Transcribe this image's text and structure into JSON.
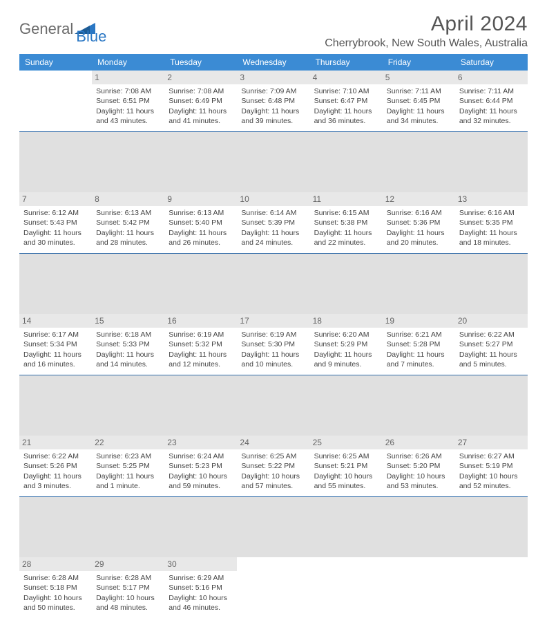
{
  "logo": {
    "part1": "General",
    "part2": "Blue"
  },
  "title": "April 2024",
  "location": "Cherrybrook, New South Wales, Australia",
  "day_headers": [
    "Sunday",
    "Monday",
    "Tuesday",
    "Wednesday",
    "Thursday",
    "Friday",
    "Saturday"
  ],
  "colors": {
    "header_bg": "#3b8bd4",
    "sep_line": "#2f6aa8",
    "daynum_bg": "#e8e8e8",
    "text": "#444444",
    "title_text": "#555555",
    "logo_gray": "#6b6b6b",
    "logo_blue": "#2a77c4"
  },
  "weeks": [
    [
      {
        "n": "",
        "sr": "",
        "ss": "",
        "dl": ""
      },
      {
        "n": "1",
        "sr": "Sunrise: 7:08 AM",
        "ss": "Sunset: 6:51 PM",
        "dl": "Daylight: 11 hours and 43 minutes."
      },
      {
        "n": "2",
        "sr": "Sunrise: 7:08 AM",
        "ss": "Sunset: 6:49 PM",
        "dl": "Daylight: 11 hours and 41 minutes."
      },
      {
        "n": "3",
        "sr": "Sunrise: 7:09 AM",
        "ss": "Sunset: 6:48 PM",
        "dl": "Daylight: 11 hours and 39 minutes."
      },
      {
        "n": "4",
        "sr": "Sunrise: 7:10 AM",
        "ss": "Sunset: 6:47 PM",
        "dl": "Daylight: 11 hours and 36 minutes."
      },
      {
        "n": "5",
        "sr": "Sunrise: 7:11 AM",
        "ss": "Sunset: 6:45 PM",
        "dl": "Daylight: 11 hours and 34 minutes."
      },
      {
        "n": "6",
        "sr": "Sunrise: 7:11 AM",
        "ss": "Sunset: 6:44 PM",
        "dl": "Daylight: 11 hours and 32 minutes."
      }
    ],
    [
      {
        "n": "7",
        "sr": "Sunrise: 6:12 AM",
        "ss": "Sunset: 5:43 PM",
        "dl": "Daylight: 11 hours and 30 minutes."
      },
      {
        "n": "8",
        "sr": "Sunrise: 6:13 AM",
        "ss": "Sunset: 5:42 PM",
        "dl": "Daylight: 11 hours and 28 minutes."
      },
      {
        "n": "9",
        "sr": "Sunrise: 6:13 AM",
        "ss": "Sunset: 5:40 PM",
        "dl": "Daylight: 11 hours and 26 minutes."
      },
      {
        "n": "10",
        "sr": "Sunrise: 6:14 AM",
        "ss": "Sunset: 5:39 PM",
        "dl": "Daylight: 11 hours and 24 minutes."
      },
      {
        "n": "11",
        "sr": "Sunrise: 6:15 AM",
        "ss": "Sunset: 5:38 PM",
        "dl": "Daylight: 11 hours and 22 minutes."
      },
      {
        "n": "12",
        "sr": "Sunrise: 6:16 AM",
        "ss": "Sunset: 5:36 PM",
        "dl": "Daylight: 11 hours and 20 minutes."
      },
      {
        "n": "13",
        "sr": "Sunrise: 6:16 AM",
        "ss": "Sunset: 5:35 PM",
        "dl": "Daylight: 11 hours and 18 minutes."
      }
    ],
    [
      {
        "n": "14",
        "sr": "Sunrise: 6:17 AM",
        "ss": "Sunset: 5:34 PM",
        "dl": "Daylight: 11 hours and 16 minutes."
      },
      {
        "n": "15",
        "sr": "Sunrise: 6:18 AM",
        "ss": "Sunset: 5:33 PM",
        "dl": "Daylight: 11 hours and 14 minutes."
      },
      {
        "n": "16",
        "sr": "Sunrise: 6:19 AM",
        "ss": "Sunset: 5:32 PM",
        "dl": "Daylight: 11 hours and 12 minutes."
      },
      {
        "n": "17",
        "sr": "Sunrise: 6:19 AM",
        "ss": "Sunset: 5:30 PM",
        "dl": "Daylight: 11 hours and 10 minutes."
      },
      {
        "n": "18",
        "sr": "Sunrise: 6:20 AM",
        "ss": "Sunset: 5:29 PM",
        "dl": "Daylight: 11 hours and 9 minutes."
      },
      {
        "n": "19",
        "sr": "Sunrise: 6:21 AM",
        "ss": "Sunset: 5:28 PM",
        "dl": "Daylight: 11 hours and 7 minutes."
      },
      {
        "n": "20",
        "sr": "Sunrise: 6:22 AM",
        "ss": "Sunset: 5:27 PM",
        "dl": "Daylight: 11 hours and 5 minutes."
      }
    ],
    [
      {
        "n": "21",
        "sr": "Sunrise: 6:22 AM",
        "ss": "Sunset: 5:26 PM",
        "dl": "Daylight: 11 hours and 3 minutes."
      },
      {
        "n": "22",
        "sr": "Sunrise: 6:23 AM",
        "ss": "Sunset: 5:25 PM",
        "dl": "Daylight: 11 hours and 1 minute."
      },
      {
        "n": "23",
        "sr": "Sunrise: 6:24 AM",
        "ss": "Sunset: 5:23 PM",
        "dl": "Daylight: 10 hours and 59 minutes."
      },
      {
        "n": "24",
        "sr": "Sunrise: 6:25 AM",
        "ss": "Sunset: 5:22 PM",
        "dl": "Daylight: 10 hours and 57 minutes."
      },
      {
        "n": "25",
        "sr": "Sunrise: 6:25 AM",
        "ss": "Sunset: 5:21 PM",
        "dl": "Daylight: 10 hours and 55 minutes."
      },
      {
        "n": "26",
        "sr": "Sunrise: 6:26 AM",
        "ss": "Sunset: 5:20 PM",
        "dl": "Daylight: 10 hours and 53 minutes."
      },
      {
        "n": "27",
        "sr": "Sunrise: 6:27 AM",
        "ss": "Sunset: 5:19 PM",
        "dl": "Daylight: 10 hours and 52 minutes."
      }
    ],
    [
      {
        "n": "28",
        "sr": "Sunrise: 6:28 AM",
        "ss": "Sunset: 5:18 PM",
        "dl": "Daylight: 10 hours and 50 minutes."
      },
      {
        "n": "29",
        "sr": "Sunrise: 6:28 AM",
        "ss": "Sunset: 5:17 PM",
        "dl": "Daylight: 10 hours and 48 minutes."
      },
      {
        "n": "30",
        "sr": "Sunrise: 6:29 AM",
        "ss": "Sunset: 5:16 PM",
        "dl": "Daylight: 10 hours and 46 minutes."
      },
      {
        "n": "",
        "sr": "",
        "ss": "",
        "dl": ""
      },
      {
        "n": "",
        "sr": "",
        "ss": "",
        "dl": ""
      },
      {
        "n": "",
        "sr": "",
        "ss": "",
        "dl": ""
      },
      {
        "n": "",
        "sr": "",
        "ss": "",
        "dl": ""
      }
    ]
  ]
}
